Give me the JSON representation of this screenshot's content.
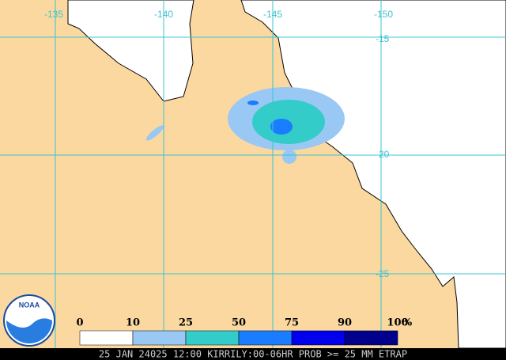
{
  "longitude_labels": [
    "-135",
    "-140",
    "-145",
    "-150"
  ],
  "latitude_labels": [
    "-15",
    "-20",
    "-25"
  ],
  "legend": {
    "labels": [
      "0",
      "10",
      "25",
      "50",
      "75",
      "90",
      "100"
    ],
    "unit": "%",
    "colors": [
      "#ffffff",
      "#99c8f4",
      "#33ccc8",
      "#1a7cff",
      "#0000ee",
      "#00008c"
    ]
  },
  "logo": "NOAA",
  "footer": "25 JAN 24025 12:00 KIRRILY:00-06HR PROB >= 25 MM ETRAP"
}
